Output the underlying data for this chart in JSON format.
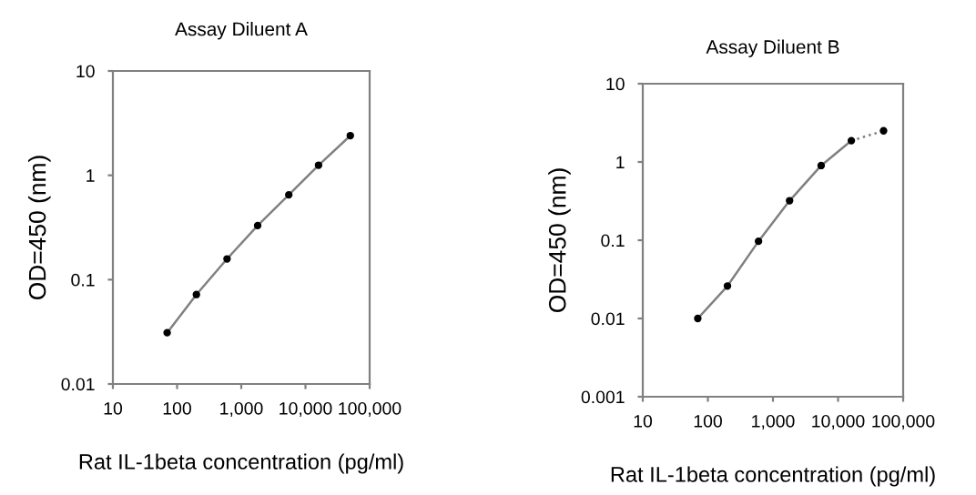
{
  "chart_data": [
    {
      "type": "line",
      "title": "Assay Diluent A",
      "xlabel": "Rat IL-1beta concentration (pg/ml)",
      "ylabel": "OD=450 (nm)",
      "log": "xy",
      "x": [
        70,
        200,
        600,
        1800,
        5500,
        16000,
        50000
      ],
      "xlim": [
        10,
        100000
      ],
      "xticks": [
        10,
        100,
        {
          "value": 1000,
          "label": "1,000"
        },
        {
          "value": 10000,
          "label": "10,000"
        },
        {
          "value": 100000,
          "label": "100,000"
        }
      ],
      "ylim": [
        0.01,
        10
      ],
      "yticks": [
        0.01,
        0.1,
        1,
        10
      ],
      "series": [
        {
          "color": "#808080",
          "marker": "none",
          "line_style": "solid",
          "values": [
            0.031,
            0.072,
            0.158,
            0.33,
            0.65,
            1.25,
            2.4
          ]
        },
        {
          "type": "scatter",
          "color": "#000000",
          "marker": "circle",
          "values": [
            0.031,
            0.072,
            0.158,
            0.33,
            0.65,
            1.25,
            2.4
          ]
        }
      ]
    },
    {
      "type": "line",
      "title": "Assay Diluent B",
      "xlabel": "Rat IL-1beta concentration (pg/ml)",
      "ylabel": "OD=450 (nm)",
      "log": "xy",
      "x": [
        70,
        200,
        600,
        1800,
        5500,
        16000,
        50000
      ],
      "xlim": [
        10,
        100000
      ],
      "xticks": [
        10,
        100,
        {
          "value": 1000,
          "label": "1,000"
        },
        {
          "value": 10000,
          "label": "10,000"
        },
        {
          "value": 100000,
          "label": "100,000"
        }
      ],
      "ylim": [
        0.001,
        10
      ],
      "yticks": [
        0.001,
        0.01,
        0.1,
        1,
        10
      ],
      "series": [
        {
          "color": "#808080",
          "marker": "none",
          "line_style": "solid",
          "values": [
            0.01,
            0.026,
            0.097,
            0.32,
            0.9,
            1.87,
            null
          ]
        },
        {
          "color": "#808080",
          "marker": "none",
          "line_style": "dotted",
          "values": [
            null,
            null,
            null,
            null,
            null,
            1.87,
            2.5
          ]
        },
        {
          "type": "scatter",
          "color": "#000000",
          "marker": "circle",
          "values": [
            0.01,
            0.026,
            0.097,
            0.32,
            0.9,
            1.87,
            2.5
          ]
        }
      ]
    }
  ]
}
